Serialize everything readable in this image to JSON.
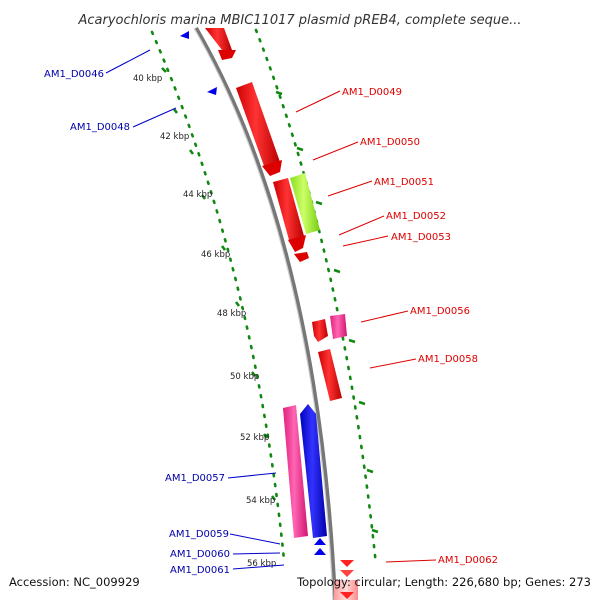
{
  "title": "Acaryochloris marina MBIC11017 plasmid pREB4, complete seque...",
  "footer": {
    "accession": "Accession: NC_009929",
    "summary": "Topology: circular; Length: 226,680 bp; Genes: 273"
  },
  "scale_ticks": [
    "40 kbp",
    "42 kbp",
    "44 kbp",
    "46 kbp",
    "48 kbp",
    "50 kbp",
    "52 kbp",
    "54 kbp",
    "56 kbp"
  ],
  "genes_forward": [
    "AM1_D0049",
    "AM1_D0050",
    "AM1_D0051",
    "AM1_D0052",
    "AM1_D0053",
    "AM1_D0056",
    "AM1_D0058",
    "AM1_D0062"
  ],
  "genes_reverse": [
    "AM1_D0046",
    "AM1_D0048",
    "AM1_D0057",
    "AM1_D0059",
    "AM1_D0060",
    "AM1_D0061"
  ],
  "colors": {
    "forward": "#ff0000",
    "forward_label": "#dd0000",
    "reverse": "#0000ee",
    "reverse_label": "#0000aa",
    "pink": "#ff3399",
    "lime": "#99ee33",
    "backbone": "#888888",
    "tick": "#118811"
  }
}
